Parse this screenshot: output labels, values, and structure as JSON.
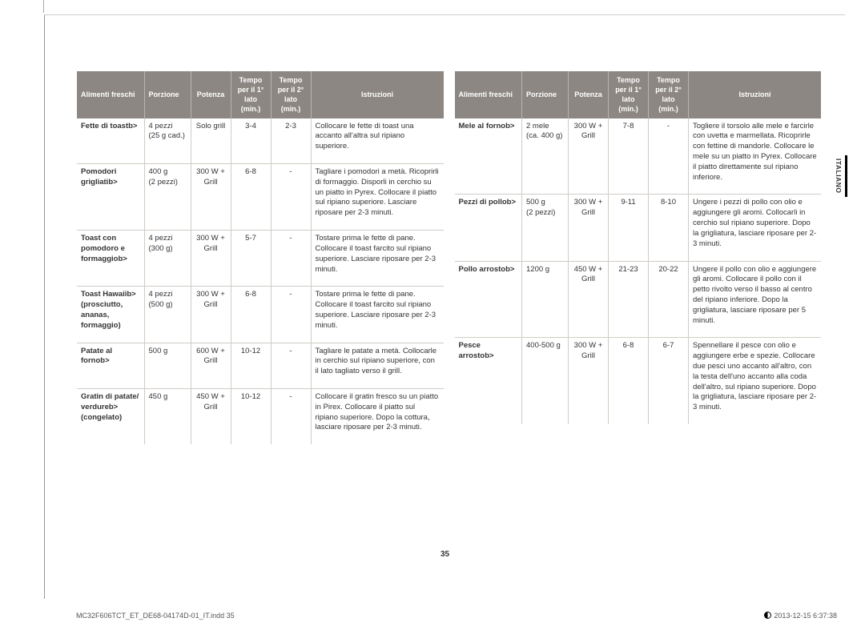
{
  "side_tab": "ITALIANO",
  "page_number": "35",
  "footer_left": "MC32F606TCT_ET_DE68-04174D-01_IT.indd   35",
  "footer_right": "2013-12-15     6:37:38",
  "headers": {
    "food": "Alimenti freschi",
    "portion": "Porzione",
    "power": "Potenza",
    "time1": "Tempo per il 1° lato (min.)",
    "time2": "Tempo per il 2° lato (min.)",
    "instructions": "Istruzioni"
  },
  "tables": [
    {
      "rows": [
        {
          "food": "Fette di toast",
          "portion": "4 pezzi (25 g cad.)",
          "power": "Solo grill",
          "t1": "3-4",
          "t2": "2-3",
          "instr": "Collocare le fette di toast una accanto all'altra sul ripiano superiore."
        },
        {
          "food": "Pomodori grigliati",
          "portion": "400 g (2 pezzi)",
          "power": "300 W + Grill",
          "t1": "6-8",
          "t2": "-",
          "instr": "Tagliare i pomodori a metà. Ricoprirli di formaggio. Disporli in cerchio su un piatto in Pyrex. Collocare il piatto sul ripiano superiore. Lasciare riposare per 2-3 minuti."
        },
        {
          "food": "Toast con pomodoro e formaggio",
          "portion": "4 pezzi (300 g)",
          "power": "300 W + Grill",
          "t1": "5-7",
          "t2": "-",
          "instr": "Tostare prima le fette di pane. Collocare il toast farcito sul ripiano superiore. Lasciare riposare per 2-3 minuti."
        },
        {
          "food": "Toast Hawaii (prosciutto, ananas, formaggio)",
          "portion": "4 pezzi (500 g)",
          "power": "300 W + Grill",
          "t1": "6-8",
          "t2": "-",
          "instr": "Tostare prima le fette di pane. Collocare il toast farcito sul ripiano superiore. Lasciare riposare per 2-3 minuti."
        },
        {
          "food": "Patate al forno",
          "portion": "500 g",
          "power": "600 W + Grill",
          "t1": "10-12",
          "t2": "-",
          "instr": "Tagliare le patate a metà. Collocarle in cerchio sul ripiano superiore, con il lato tagliato verso il grill."
        },
        {
          "food": "Gratin di patate/verdure (congelato)",
          "portion": "450 g",
          "power": "450 W + Grill",
          "t1": "10-12",
          "t2": "-",
          "instr": "Collocare il gratin fresco su un piatto in Pirex. Collocare il piatto sul ripiano superiore. Dopo la cottura, lasciare riposare per 2-3 minuti."
        }
      ]
    },
    {
      "rows": [
        {
          "food": "Mele al forno",
          "portion": "2 mele (ca. 400 g)",
          "power": "300 W + Grill",
          "t1": "7-8",
          "t2": "-",
          "instr": "Togliere il torsolo alle mele e farcirle con uvetta e marmellata. Ricoprirle con fettine di mandorle. Collocare le mele su un piatto in Pyrex. Collocare il piatto direttamente sul ripiano inferiore."
        },
        {
          "food": "Pezzi di pollo",
          "portion": "500 g (2 pezzi)",
          "power": "300 W + Grill",
          "t1": "9-11",
          "t2": "8-10",
          "instr": "Ungere i pezzi di pollo con olio e aggiungere gli aromi. Collocarli in cerchio sul ripiano superiore. Dopo la grigliatura, lasciare riposare per 2-3 minuti."
        },
        {
          "food": "Pollo arrosto",
          "portion": "1200 g",
          "power": "450 W + Grill",
          "t1": "21-23",
          "t2": "20-22",
          "instr": "Ungere il pollo con olio e aggiungere gli aromi. Collocare il pollo con il petto rivolto verso il basso al centro del ripiano inferiore. Dopo la grigliatura, lasciare riposare per 5 minuti."
        },
        {
          "food": "Pesce arrosto",
          "portion": "400-500 g",
          "power": "300 W + Grill",
          "t1": "6-8",
          "t2": "6-7",
          "instr": "Spennellare il pesce con olio e aggiungere erbe e spezie. Collocare due pesci uno accanto all'altro, con la testa dell'uno accanto alla coda dell'altro, sul ripiano superiore. Dopo la grigliatura, lasciare riposare per 2-3 minuti."
        }
      ]
    }
  ]
}
